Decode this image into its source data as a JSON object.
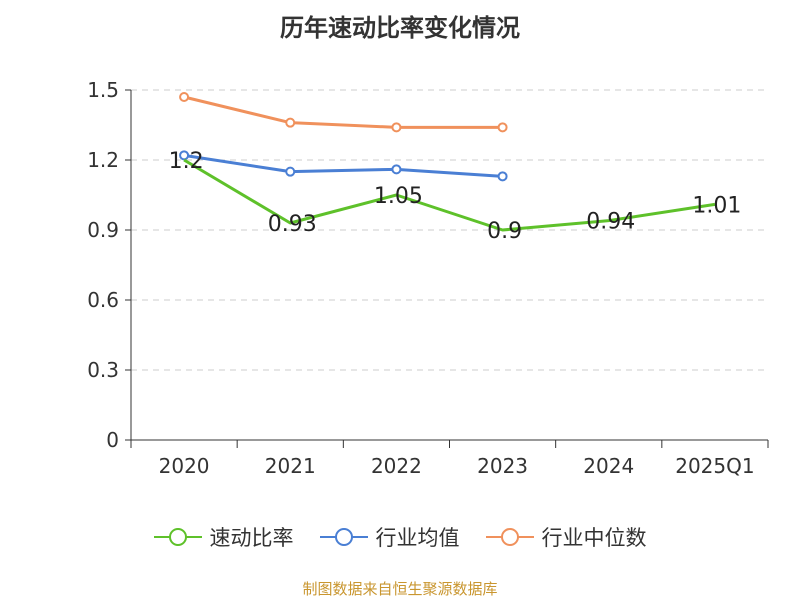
{
  "title": "历年速动比率变化情况",
  "source": "制图数据来自恒生聚源数据库",
  "chart_data": {
    "type": "line",
    "categories": [
      "2020",
      "2021",
      "2022",
      "2023",
      "2024",
      "2025Q1"
    ],
    "ylim": [
      0,
      1.5
    ],
    "yticks": [
      "0",
      "0.3",
      "0.6",
      "0.9",
      "1.2",
      "1.5"
    ],
    "ytick_values": [
      0,
      0.3,
      0.6,
      0.9,
      1.2,
      1.5
    ],
    "grid": true,
    "legend_position": "bottom",
    "series": [
      {
        "name": "速动比率",
        "color": "#5ec12a",
        "values": [
          1.2,
          0.93,
          1.05,
          0.9,
          0.94,
          1.01
        ],
        "labels": [
          "1.2",
          "0.93",
          "1.05",
          "0.9",
          "0.94",
          "1.01"
        ]
      },
      {
        "name": "行业均值",
        "color": "#4a7fd4",
        "values": [
          1.22,
          1.15,
          1.16,
          1.13,
          null,
          null
        ]
      },
      {
        "name": "行业中位数",
        "color": "#f0915c",
        "values": [
          1.47,
          1.36,
          1.34,
          1.34,
          null,
          null
        ]
      }
    ]
  }
}
